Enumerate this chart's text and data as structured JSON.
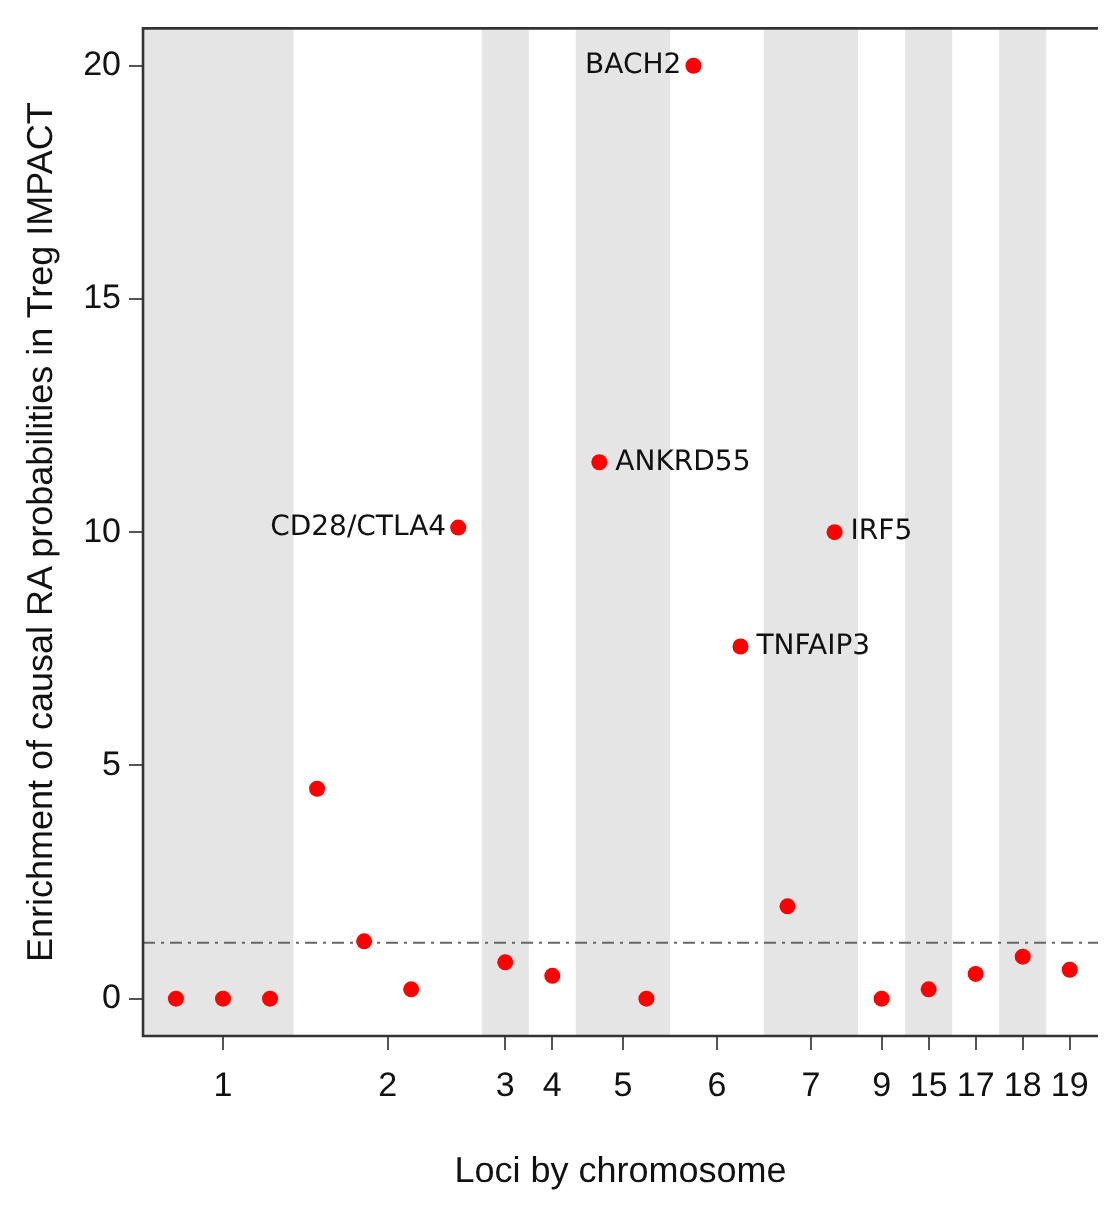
{
  "chart_data": {
    "type": "scatter",
    "xlabel": "Loci by chromosome",
    "ylabel": "Enrichment of causal RA probabilities in Treg IMPACT",
    "categories": [
      null,
      null,
      "1",
      null,
      null,
      null,
      null,
      null,
      null,
      "2",
      null,
      null,
      null,
      null,
      "3",
      null,
      "4",
      null,
      null,
      "5",
      null,
      null,
      null,
      "6",
      null,
      null,
      null,
      "7",
      null,
      null,
      "9",
      null,
      "15",
      null,
      "17",
      null,
      "18",
      null,
      "19"
    ],
    "series": [
      {
        "color": "#ff0000",
        "values": [
          0,
          null,
          0,
          null,
          0,
          null,
          4.5,
          null,
          1.23,
          null,
          0.2,
          null,
          10.1,
          null,
          0.78,
          null,
          0.49,
          null,
          11.5,
          null,
          0,
          null,
          20,
          null,
          7.55,
          null,
          1.98,
          null,
          10,
          null,
          0,
          null,
          0.2,
          null,
          0.53,
          null,
          0.9,
          null,
          0.62
        ]
      }
    ],
    "ylim": [
      -0.8,
      20.8
    ],
    "yticks": [
      0,
      5,
      10,
      15,
      20
    ],
    "ref_lines": [
      {
        "axis": "y",
        "value": 1.2,
        "color": "#666666",
        "line_style": "dashdot"
      }
    ],
    "annotations": [
      "CD28/CTLA4",
      "ANKRD55",
      "BACH2",
      "TNFAIP3",
      "IRF5"
    ],
    "marker": "circle",
    "grid": false,
    "legend": false
  }
}
